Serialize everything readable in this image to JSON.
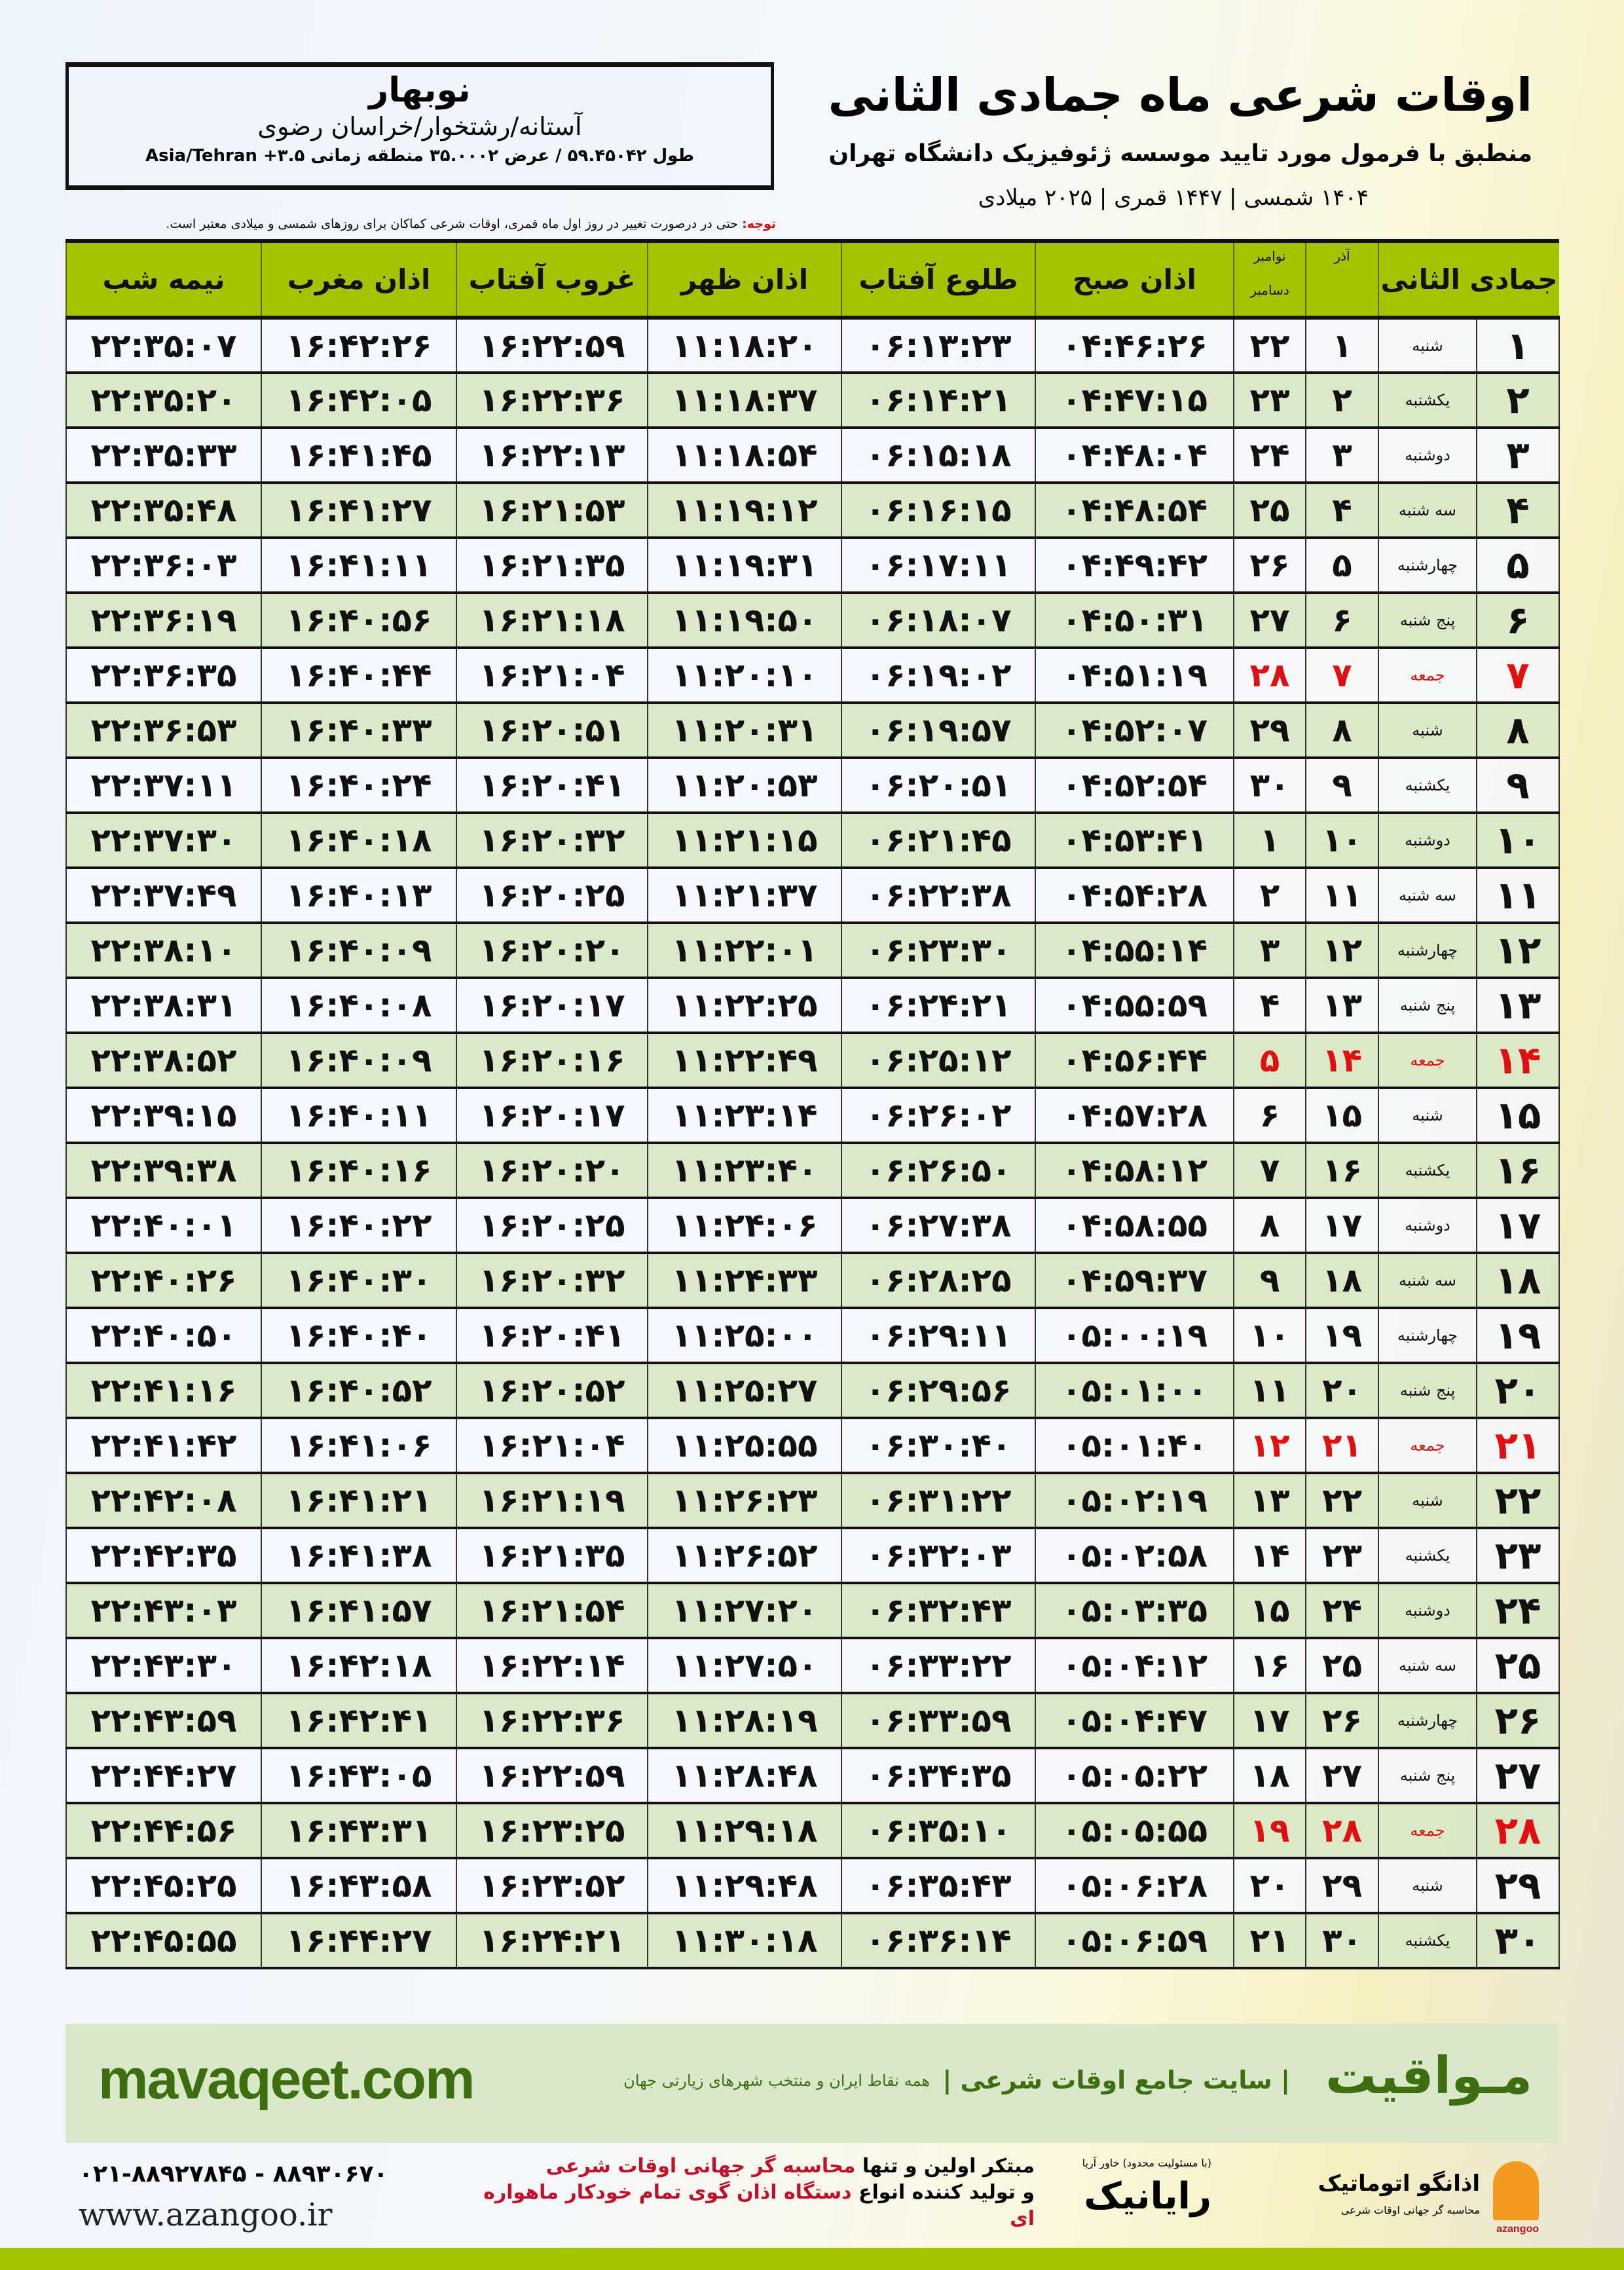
{
  "header": {
    "title": "اوقات شرعی ماه جمادی الثانی",
    "subtitle": "منطبق با فرمول مورد تایید موسسه ژئوفیزیک دانشگاه تهران",
    "years": "۱۴۰۴ شمسی | ۱۴۴۷ قمری | ۲۰۲۵ میلادی",
    "city": "نوبهار",
    "region": "آستانه/رشتخوار/خراسان رضوی",
    "coords": "طول ۵۹.۴۵۰۴۲ / عرض ۳۵.۰۰۰۲ منطقه زمانی ۳.۵+ Asia/Tehran",
    "note_label": "توجه:",
    "note_text": " حتی در درصورت تغییر در روز اول ماه قمری، اوقات شرعی کماکان برای روزهای شمسی و میلادی معتبر است."
  },
  "table": {
    "columns": {
      "hijri": "جمادی الثانی",
      "azar": "آذر",
      "nov": "نوامبر",
      "dec": "دسامبر",
      "sobh": "اذان صبح",
      "tolu": "طلوع آفتاب",
      "zohr": "اذان ظهر",
      "ghoroob": "غروب آفتاب",
      "maghreb": "اذان مغرب",
      "nimeshab": "نیمه شب"
    },
    "rows": [
      [
        "۱",
        "شنبه",
        "۱",
        "۲۲",
        "۰۴:۴۶:۲۶",
        "۰۶:۱۳:۲۳",
        "۱۱:۱۸:۲۰",
        "۱۶:۲۲:۵۹",
        "۱۶:۴۲:۲۶",
        "۲۲:۳۵:۰۷"
      ],
      [
        "۲",
        "یکشنبه",
        "۲",
        "۲۳",
        "۰۴:۴۷:۱۵",
        "۰۶:۱۴:۲۱",
        "۱۱:۱۸:۳۷",
        "۱۶:۲۲:۳۶",
        "۱۶:۴۲:۰۵",
        "۲۲:۳۵:۲۰"
      ],
      [
        "۳",
        "دوشنبه",
        "۳",
        "۲۴",
        "۰۴:۴۸:۰۴",
        "۰۶:۱۵:۱۸",
        "۱۱:۱۸:۵۴",
        "۱۶:۲۲:۱۳",
        "۱۶:۴۱:۴۵",
        "۲۲:۳۵:۳۳"
      ],
      [
        "۴",
        "سه شنبه",
        "۴",
        "۲۵",
        "۰۴:۴۸:۵۴",
        "۰۶:۱۶:۱۵",
        "۱۱:۱۹:۱۲",
        "۱۶:۲۱:۵۳",
        "۱۶:۴۱:۲۷",
        "۲۲:۳۵:۴۸"
      ],
      [
        "۵",
        "چهارشنبه",
        "۵",
        "۲۶",
        "۰۴:۴۹:۴۲",
        "۰۶:۱۷:۱۱",
        "۱۱:۱۹:۳۱",
        "۱۶:۲۱:۳۵",
        "۱۶:۴۱:۱۱",
        "۲۲:۳۶:۰۳"
      ],
      [
        "۶",
        "پنج شنبه",
        "۶",
        "۲۷",
        "۰۴:۵۰:۳۱",
        "۰۶:۱۸:۰۷",
        "۱۱:۱۹:۵۰",
        "۱۶:۲۱:۱۸",
        "۱۶:۴۰:۵۶",
        "۲۲:۳۶:۱۹"
      ],
      [
        "۷",
        "جمعه",
        "۷",
        "۲۸",
        "۰۴:۵۱:۱۹",
        "۰۶:۱۹:۰۲",
        "۱۱:۲۰:۱۰",
        "۱۶:۲۱:۰۴",
        "۱۶:۴۰:۴۴",
        "۲۲:۳۶:۳۵"
      ],
      [
        "۸",
        "شنبه",
        "۸",
        "۲۹",
        "۰۴:۵۲:۰۷",
        "۰۶:۱۹:۵۷",
        "۱۱:۲۰:۳۱",
        "۱۶:۲۰:۵۱",
        "۱۶:۴۰:۳۳",
        "۲۲:۳۶:۵۳"
      ],
      [
        "۹",
        "یکشنبه",
        "۹",
        "۳۰",
        "۰۴:۵۲:۵۴",
        "۰۶:۲۰:۵۱",
        "۱۱:۲۰:۵۳",
        "۱۶:۲۰:۴۱",
        "۱۶:۴۰:۲۴",
        "۲۲:۳۷:۱۱"
      ],
      [
        "۱۰",
        "دوشنبه",
        "۱۰",
        "۱",
        "۰۴:۵۳:۴۱",
        "۰۶:۲۱:۴۵",
        "۱۱:۲۱:۱۵",
        "۱۶:۲۰:۳۲",
        "۱۶:۴۰:۱۸",
        "۲۲:۳۷:۳۰"
      ],
      [
        "۱۱",
        "سه شنبه",
        "۱۱",
        "۲",
        "۰۴:۵۴:۲۸",
        "۰۶:۲۲:۳۸",
        "۱۱:۲۱:۳۷",
        "۱۶:۲۰:۲۵",
        "۱۶:۴۰:۱۳",
        "۲۲:۳۷:۴۹"
      ],
      [
        "۱۲",
        "چهارشنبه",
        "۱۲",
        "۳",
        "۰۴:۵۵:۱۴",
        "۰۶:۲۳:۳۰",
        "۱۱:۲۲:۰۱",
        "۱۶:۲۰:۲۰",
        "۱۶:۴۰:۰۹",
        "۲۲:۳۸:۱۰"
      ],
      [
        "۱۳",
        "پنج شنبه",
        "۱۳",
        "۴",
        "۰۴:۵۵:۵۹",
        "۰۶:۲۴:۲۱",
        "۱۱:۲۲:۲۵",
        "۱۶:۲۰:۱۷",
        "۱۶:۴۰:۰۸",
        "۲۲:۳۸:۳۱"
      ],
      [
        "۱۴",
        "جمعه",
        "۱۴",
        "۵",
        "۰۴:۵۶:۴۴",
        "۰۶:۲۵:۱۲",
        "۱۱:۲۲:۴۹",
        "۱۶:۲۰:۱۶",
        "۱۶:۴۰:۰۹",
        "۲۲:۳۸:۵۲"
      ],
      [
        "۱۵",
        "شنبه",
        "۱۵",
        "۶",
        "۰۴:۵۷:۲۸",
        "۰۶:۲۶:۰۲",
        "۱۱:۲۳:۱۴",
        "۱۶:۲۰:۱۷",
        "۱۶:۴۰:۱۱",
        "۲۲:۳۹:۱۵"
      ],
      [
        "۱۶",
        "یکشنبه",
        "۱۶",
        "۷",
        "۰۴:۵۸:۱۲",
        "۰۶:۲۶:۵۰",
        "۱۱:۲۳:۴۰",
        "۱۶:۲۰:۲۰",
        "۱۶:۴۰:۱۶",
        "۲۲:۳۹:۳۸"
      ],
      [
        "۱۷",
        "دوشنبه",
        "۱۷",
        "۸",
        "۰۴:۵۸:۵۵",
        "۰۶:۲۷:۳۸",
        "۱۱:۲۴:۰۶",
        "۱۶:۲۰:۲۵",
        "۱۶:۴۰:۲۲",
        "۲۲:۴۰:۰۱"
      ],
      [
        "۱۸",
        "سه شنبه",
        "۱۸",
        "۹",
        "۰۴:۵۹:۳۷",
        "۰۶:۲۸:۲۵",
        "۱۱:۲۴:۳۳",
        "۱۶:۲۰:۳۲",
        "۱۶:۴۰:۳۰",
        "۲۲:۴۰:۲۶"
      ],
      [
        "۱۹",
        "چهارشنبه",
        "۱۹",
        "۱۰",
        "۰۵:۰۰:۱۹",
        "۰۶:۲۹:۱۱",
        "۱۱:۲۵:۰۰",
        "۱۶:۲۰:۴۱",
        "۱۶:۴۰:۴۰",
        "۲۲:۴۰:۵۰"
      ],
      [
        "۲۰",
        "پنج شنبه",
        "۲۰",
        "۱۱",
        "۰۵:۰۱:۰۰",
        "۰۶:۲۹:۵۶",
        "۱۱:۲۵:۲۷",
        "۱۶:۲۰:۵۲",
        "۱۶:۴۰:۵۲",
        "۲۲:۴۱:۱۶"
      ],
      [
        "۲۱",
        "جمعه",
        "۲۱",
        "۱۲",
        "۰۵:۰۱:۴۰",
        "۰۶:۳۰:۴۰",
        "۱۱:۲۵:۵۵",
        "۱۶:۲۱:۰۴",
        "۱۶:۴۱:۰۶",
        "۲۲:۴۱:۴۲"
      ],
      [
        "۲۲",
        "شنبه",
        "۲۲",
        "۱۳",
        "۰۵:۰۲:۱۹",
        "۰۶:۳۱:۲۲",
        "۱۱:۲۶:۲۳",
        "۱۶:۲۱:۱۹",
        "۱۶:۴۱:۲۱",
        "۲۲:۴۲:۰۸"
      ],
      [
        "۲۳",
        "یکشنبه",
        "۲۳",
        "۱۴",
        "۰۵:۰۲:۵۸",
        "۰۶:۳۲:۰۳",
        "۱۱:۲۶:۵۲",
        "۱۶:۲۱:۳۵",
        "۱۶:۴۱:۳۸",
        "۲۲:۴۲:۳۵"
      ],
      [
        "۲۴",
        "دوشنبه",
        "۲۴",
        "۱۵",
        "۰۵:۰۳:۳۵",
        "۰۶:۳۲:۴۳",
        "۱۱:۲۷:۲۰",
        "۱۶:۲۱:۵۴",
        "۱۶:۴۱:۵۷",
        "۲۲:۴۳:۰۳"
      ],
      [
        "۲۵",
        "سه شنبه",
        "۲۵",
        "۱۶",
        "۰۵:۰۴:۱۲",
        "۰۶:۳۳:۲۲",
        "۱۱:۲۷:۵۰",
        "۱۶:۲۲:۱۴",
        "۱۶:۴۲:۱۸",
        "۲۲:۴۳:۳۰"
      ],
      [
        "۲۶",
        "چهارشنبه",
        "۲۶",
        "۱۷",
        "۰۵:۰۴:۴۷",
        "۰۶:۳۳:۵۹",
        "۱۱:۲۸:۱۹",
        "۱۶:۲۲:۳۶",
        "۱۶:۴۲:۴۱",
        "۲۲:۴۳:۵۹"
      ],
      [
        "۲۷",
        "پنج شنبه",
        "۲۷",
        "۱۸",
        "۰۵:۰۵:۲۲",
        "۰۶:۳۴:۳۵",
        "۱۱:۲۸:۴۸",
        "۱۶:۲۲:۵۹",
        "۱۶:۴۳:۰۵",
        "۲۲:۴۴:۲۷"
      ],
      [
        "۲۸",
        "جمعه",
        "۲۸",
        "۱۹",
        "۰۵:۰۵:۵۵",
        "۰۶:۳۵:۱۰",
        "۱۱:۲۹:۱۸",
        "۱۶:۲۳:۲۵",
        "۱۶:۴۳:۳۱",
        "۲۲:۴۴:۵۶"
      ],
      [
        "۲۹",
        "شنبه",
        "۲۹",
        "۲۰",
        "۰۵:۰۶:۲۸",
        "۰۶:۳۵:۴۳",
        "۱۱:۲۹:۴۸",
        "۱۶:۲۳:۵۲",
        "۱۶:۴۳:۵۸",
        "۲۲:۴۵:۲۵"
      ],
      [
        "۳۰",
        "یکشنبه",
        "۳۰",
        "۲۱",
        "۰۵:۰۶:۵۹",
        "۰۶:۳۶:۱۴",
        "۱۱:۳۰:۱۸",
        "۱۶:۲۴:۲۱",
        "۱۶:۴۴:۲۷",
        "۲۲:۴۵:۵۵"
      ]
    ],
    "friday_label": "جمعه"
  },
  "colors": {
    "header_green": "#a4c400",
    "row_green": "#d9e8c8",
    "friday_red": "#e01010",
    "brand_green": "#3d6e10"
  },
  "footer": {
    "brand": "مـواقیت",
    "slogan": "| سایت جامع اوقات شرعی |",
    "slogan2": "همه نقاط ایران و منتخب شهرهای زیارتی جهان",
    "site": "mavaqeet.com",
    "phones": "۰۲۱-۸۸۹۲۷۸۴۵ - ۸۸۹۳۰۶۷۰",
    "web": "www.azangoo.ir",
    "promo1a": "مبتکر اولین و تنها ",
    "promo1b": "محاسبه گر جهانی اوقات شرعی",
    "promo2a": "و تولید کننده انواع ",
    "promo2b": "دستگاه اذان گوی تمام خودکار ماهواره ای",
    "logo1": "رایانیک",
    "logo1_small": "(با مسئولیت محدود) خاور آریا",
    "logo2": "اذانگو اتوماتیک",
    "logo2_sub": "محاسبه گر جهانی اوقات شرعی",
    "logo2_en": "azangoo"
  }
}
